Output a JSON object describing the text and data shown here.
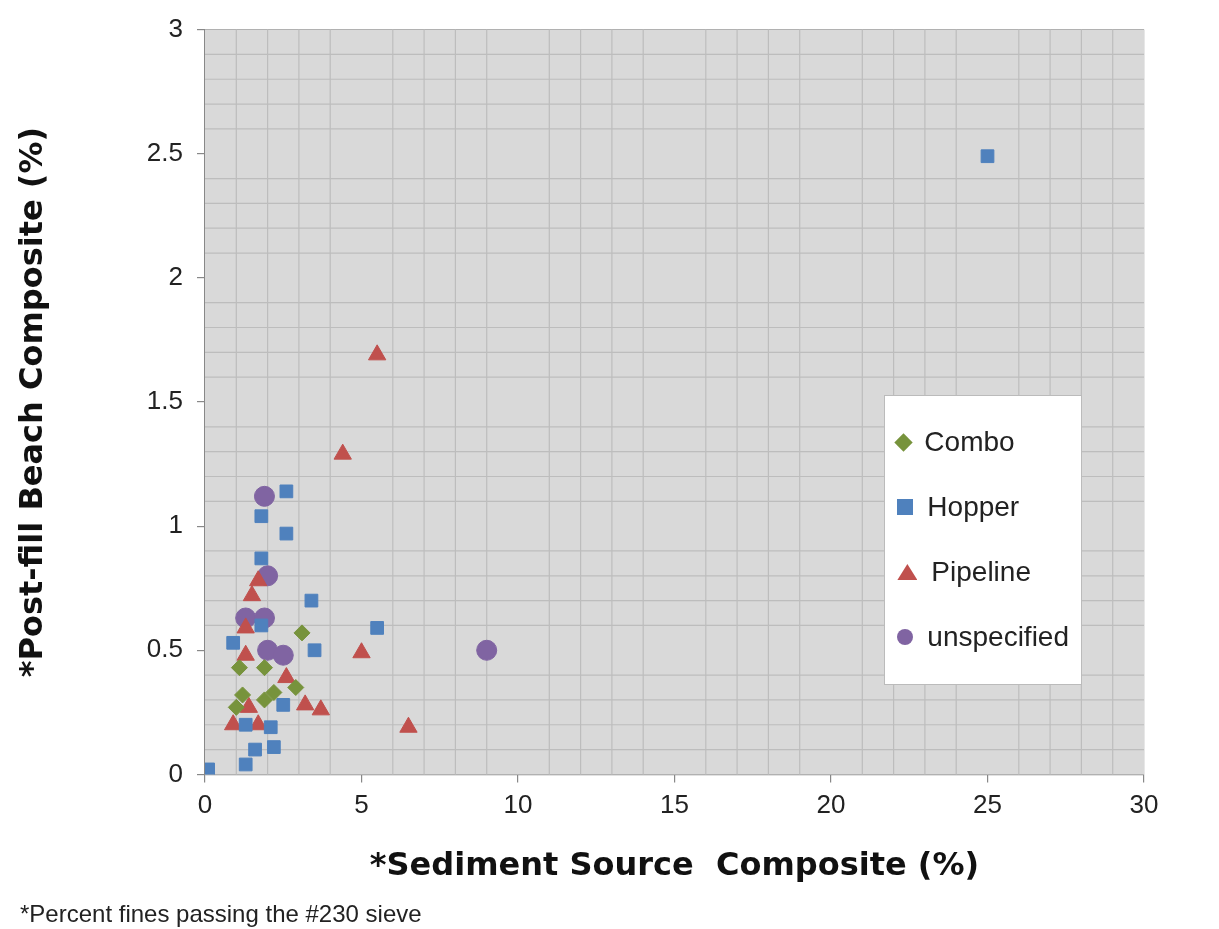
{
  "chart_data": {
    "type": "scatter",
    "xlabel": "*Sediment Source  Composite (%)",
    "ylabel": "*Post-fill Beach Composite (%)",
    "xlim": [
      0,
      30
    ],
    "xticks": [
      0,
      5,
      10,
      15,
      20,
      25,
      30
    ],
    "ylim": [
      0,
      3
    ],
    "yticks": [
      0,
      0.5,
      1,
      1.5,
      2,
      2.5,
      3
    ],
    "grid": true,
    "legend": "right",
    "annotations": [
      "*Percent fines passing the #230 sieve"
    ],
    "series": [
      {
        "name": "Combo",
        "color": "#77933c",
        "marker": "diamond",
        "x": [
          3.1,
          1.1,
          1.9,
          1.2,
          1.0,
          1.9,
          2.2,
          2.9
        ],
        "values": [
          0.57,
          0.43,
          0.43,
          0.32,
          0.27,
          0.3,
          0.33,
          0.35
        ]
      },
      {
        "name": "Hopper",
        "color": "#4f81bd",
        "marker": "square",
        "x": [
          0.1,
          1.3,
          1.6,
          2.2,
          2.1,
          1.3,
          2.5,
          0.9,
          1.8,
          3.4,
          3.5,
          5.5,
          1.8,
          1.8,
          2.6,
          2.6,
          25
        ],
        "values": [
          0.02,
          0.04,
          0.1,
          0.11,
          0.19,
          0.2,
          0.28,
          0.53,
          0.6,
          0.7,
          0.5,
          0.59,
          0.87,
          1.04,
          0.97,
          1.14,
          2.49
        ]
      },
      {
        "name": "Pipeline",
        "color": "#c0504d",
        "marker": "triangle",
        "x": [
          4.4,
          5.5,
          1.7,
          1.5,
          1.3,
          1.3,
          2.6,
          3.2,
          3.7,
          5.0,
          6.5,
          0.9,
          1.4,
          1.7
        ],
        "values": [
          1.29,
          1.69,
          0.78,
          0.72,
          0.59,
          0.48,
          0.39,
          0.28,
          0.26,
          0.49,
          0.19,
          0.2,
          0.27,
          0.2
        ]
      },
      {
        "name": "unspecified",
        "color": "#8064a2",
        "marker": "circle",
        "x": [
          1.9,
          2.0,
          1.3,
          1.9,
          2.0,
          2.5,
          9
        ],
        "values": [
          1.12,
          0.8,
          0.63,
          0.63,
          0.5,
          0.48,
          0.5
        ]
      }
    ]
  }
}
